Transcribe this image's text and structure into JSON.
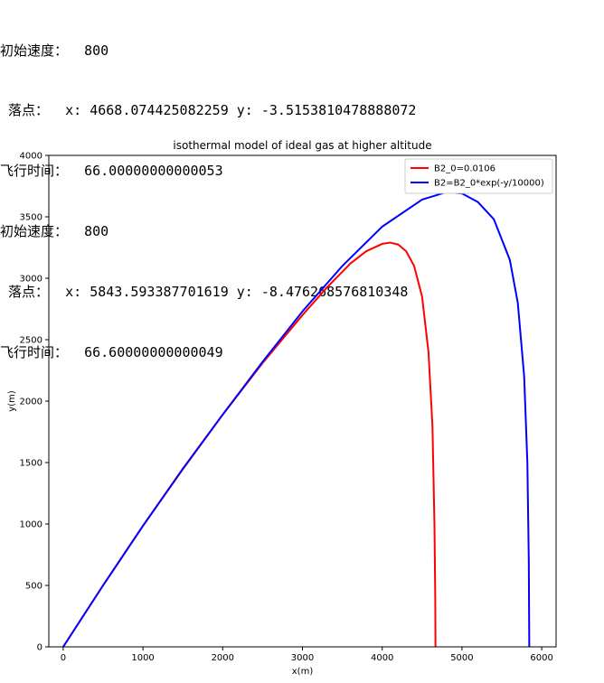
{
  "console": {
    "runs": [
      {
        "speed_label": "初始速度：",
        "speed_value": "800",
        "landing_label": "落点：",
        "x_label": "x:",
        "x_value": "4668.074425082259",
        "y_label": "y:",
        "y_value": "-3.5153810478888072",
        "time_label": "飞行时间：",
        "time_value": "66.00000000000053"
      },
      {
        "speed_label": "初始速度：",
        "speed_value": "800",
        "landing_label": "落点：",
        "x_label": "x:",
        "x_value": "5843.593387701619",
        "y_label": "y:",
        "y_value": "-8.476268576810348",
        "time_label": "飞行时间：",
        "time_value": "66.60000000000049"
      }
    ]
  },
  "chart_data": {
    "type": "line",
    "title": "isothermal model of ideal gas at higher altitude",
    "xlabel": "x(m)",
    "ylabel": "y(m)",
    "xlim": [
      -180,
      6180
    ],
    "ylim": [
      0,
      4000
    ],
    "xticks": [
      "0",
      "1000",
      "2000",
      "3000",
      "4000",
      "5000",
      "6000"
    ],
    "yticks": [
      "0",
      "500",
      "1000",
      "1500",
      "2000",
      "2500",
      "3000",
      "3500",
      "4000"
    ],
    "grid": false,
    "legend_position": "top-right",
    "series": [
      {
        "name": "B2_0=0.0106",
        "color": "#ff0000",
        "x": [
          0,
          500,
          1000,
          1500,
          2000,
          2500,
          3000,
          3300,
          3600,
          3800,
          4000,
          4100,
          4200,
          4300,
          4400,
          4500,
          4580,
          4630,
          4655,
          4665,
          4668
        ],
        "y": [
          0,
          500,
          985,
          1445,
          1890,
          2310,
          2700,
          2920,
          3120,
          3220,
          3280,
          3290,
          3275,
          3220,
          3100,
          2850,
          2400,
          1800,
          1000,
          400,
          0
        ]
      },
      {
        "name": "B2=B2_0*exp(-y/10000)",
        "color": "#0000ff",
        "x": [
          0,
          500,
          1000,
          1500,
          2000,
          2500,
          3000,
          3500,
          4000,
          4500,
          4800,
          5000,
          5200,
          5400,
          5600,
          5700,
          5780,
          5820,
          5838,
          5844
        ],
        "y": [
          0,
          500,
          985,
          1450,
          1890,
          2320,
          2730,
          3100,
          3420,
          3640,
          3700,
          3690,
          3620,
          3480,
          3150,
          2800,
          2200,
          1500,
          700,
          0
        ]
      }
    ]
  }
}
